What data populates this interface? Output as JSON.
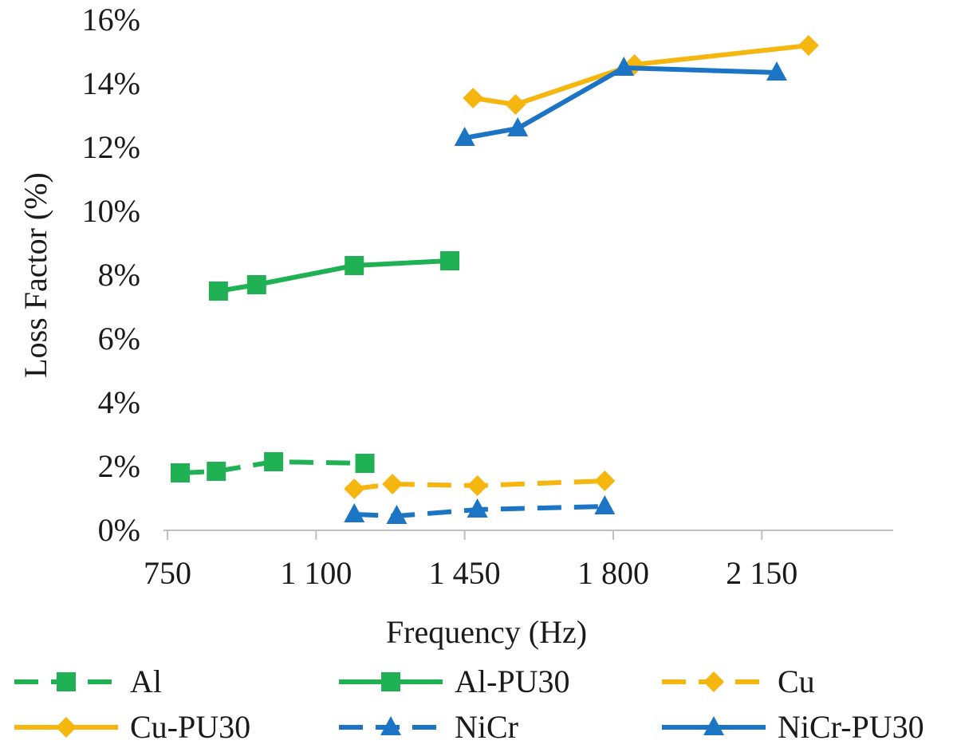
{
  "chart_data": {
    "type": "line",
    "title": "",
    "xlabel": "Frequency (Hz)",
    "ylabel": "Loss Factor (%)",
    "xlim": [
      750,
      2450
    ],
    "ylim": [
      0,
      16
    ],
    "x_ticks": [
      750,
      1100,
      1450,
      1800,
      2150
    ],
    "x_tick_labels": [
      "750",
      "1 100",
      "1 450",
      "1 800",
      "2 150"
    ],
    "y_ticks": [
      0,
      2,
      4,
      6,
      8,
      10,
      12,
      14,
      16
    ],
    "y_tick_labels": [
      "0%",
      "2%",
      "4%",
      "6%",
      "8%",
      "10%",
      "12%",
      "14%",
      "16%"
    ],
    "grid": false,
    "legend_position": "bottom",
    "series": [
      {
        "name": "Al",
        "color": "#1fb153",
        "dash": true,
        "marker": "square",
        "x": [
          780,
          865,
          1000,
          1215
        ],
        "values": [
          1.8,
          1.85,
          2.15,
          2.1
        ]
      },
      {
        "name": "Al-PU30",
        "color": "#1fb153",
        "dash": false,
        "marker": "square",
        "x": [
          870,
          960,
          1190,
          1415
        ],
        "values": [
          7.5,
          7.7,
          8.3,
          8.45
        ]
      },
      {
        "name": "Cu",
        "color": "#f5b60f",
        "dash": true,
        "marker": "diamond",
        "x": [
          1190,
          1280,
          1480,
          1780
        ],
        "values": [
          1.3,
          1.45,
          1.4,
          1.55
        ]
      },
      {
        "name": "Cu-PU30",
        "color": "#f5b60f",
        "dash": false,
        "marker": "diamond",
        "x": [
          1470,
          1570,
          1850,
          2260
        ],
        "values": [
          13.55,
          13.35,
          14.6,
          15.2
        ]
      },
      {
        "name": "NiCr",
        "color": "#1b74c4",
        "dash": true,
        "marker": "triangle",
        "x": [
          1190,
          1290,
          1480,
          1780
        ],
        "values": [
          0.5,
          0.45,
          0.65,
          0.75
        ]
      },
      {
        "name": "NiCr-PU30",
        "color": "#1b74c4",
        "dash": false,
        "marker": "triangle",
        "x": [
          1450,
          1575,
          1825,
          2185
        ],
        "values": [
          12.3,
          12.6,
          14.5,
          14.35
        ]
      }
    ]
  }
}
